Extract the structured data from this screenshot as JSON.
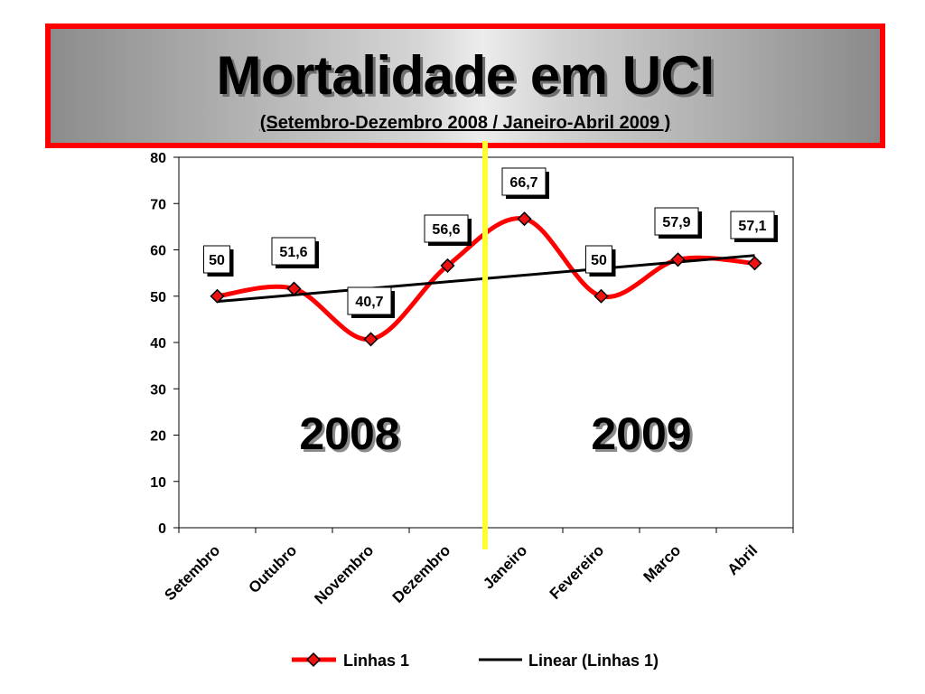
{
  "header": {
    "title": "Mortalidade em UCI",
    "subtitle": "(Setembro-Dezembro 2008 / Janeiro-Abril 2009 )"
  },
  "colors": {
    "series_line": "#ff0000",
    "marker_fill": "#ee1111",
    "trend_line": "#000000",
    "divider": "#ffff33",
    "title_border": "#ff0000"
  },
  "chart_data": {
    "type": "line",
    "categories": [
      "Setembro",
      "Outubro",
      "Novembro",
      "Dezembro",
      "Janeiro",
      "Fevereiro",
      "Marco",
      "Abril"
    ],
    "series": [
      {
        "name": "Linhas 1",
        "values": [
          50,
          51.6,
          40.7,
          56.6,
          66.7,
          50,
          57.9,
          57.1
        ]
      }
    ],
    "data_labels": [
      "50",
      "51,6",
      "40,7",
      "56,6",
      "66,7",
      "50",
      "57,9",
      "57,1"
    ],
    "trendline": {
      "name": "Linear (Linhas 1)",
      "type": "linear"
    },
    "ylim": [
      0,
      80
    ],
    "yticks": [
      0,
      10,
      20,
      30,
      40,
      50,
      60,
      70,
      80
    ],
    "period_labels": [
      "2008",
      "2009"
    ],
    "legend_position": "bottom",
    "grid": false
  }
}
